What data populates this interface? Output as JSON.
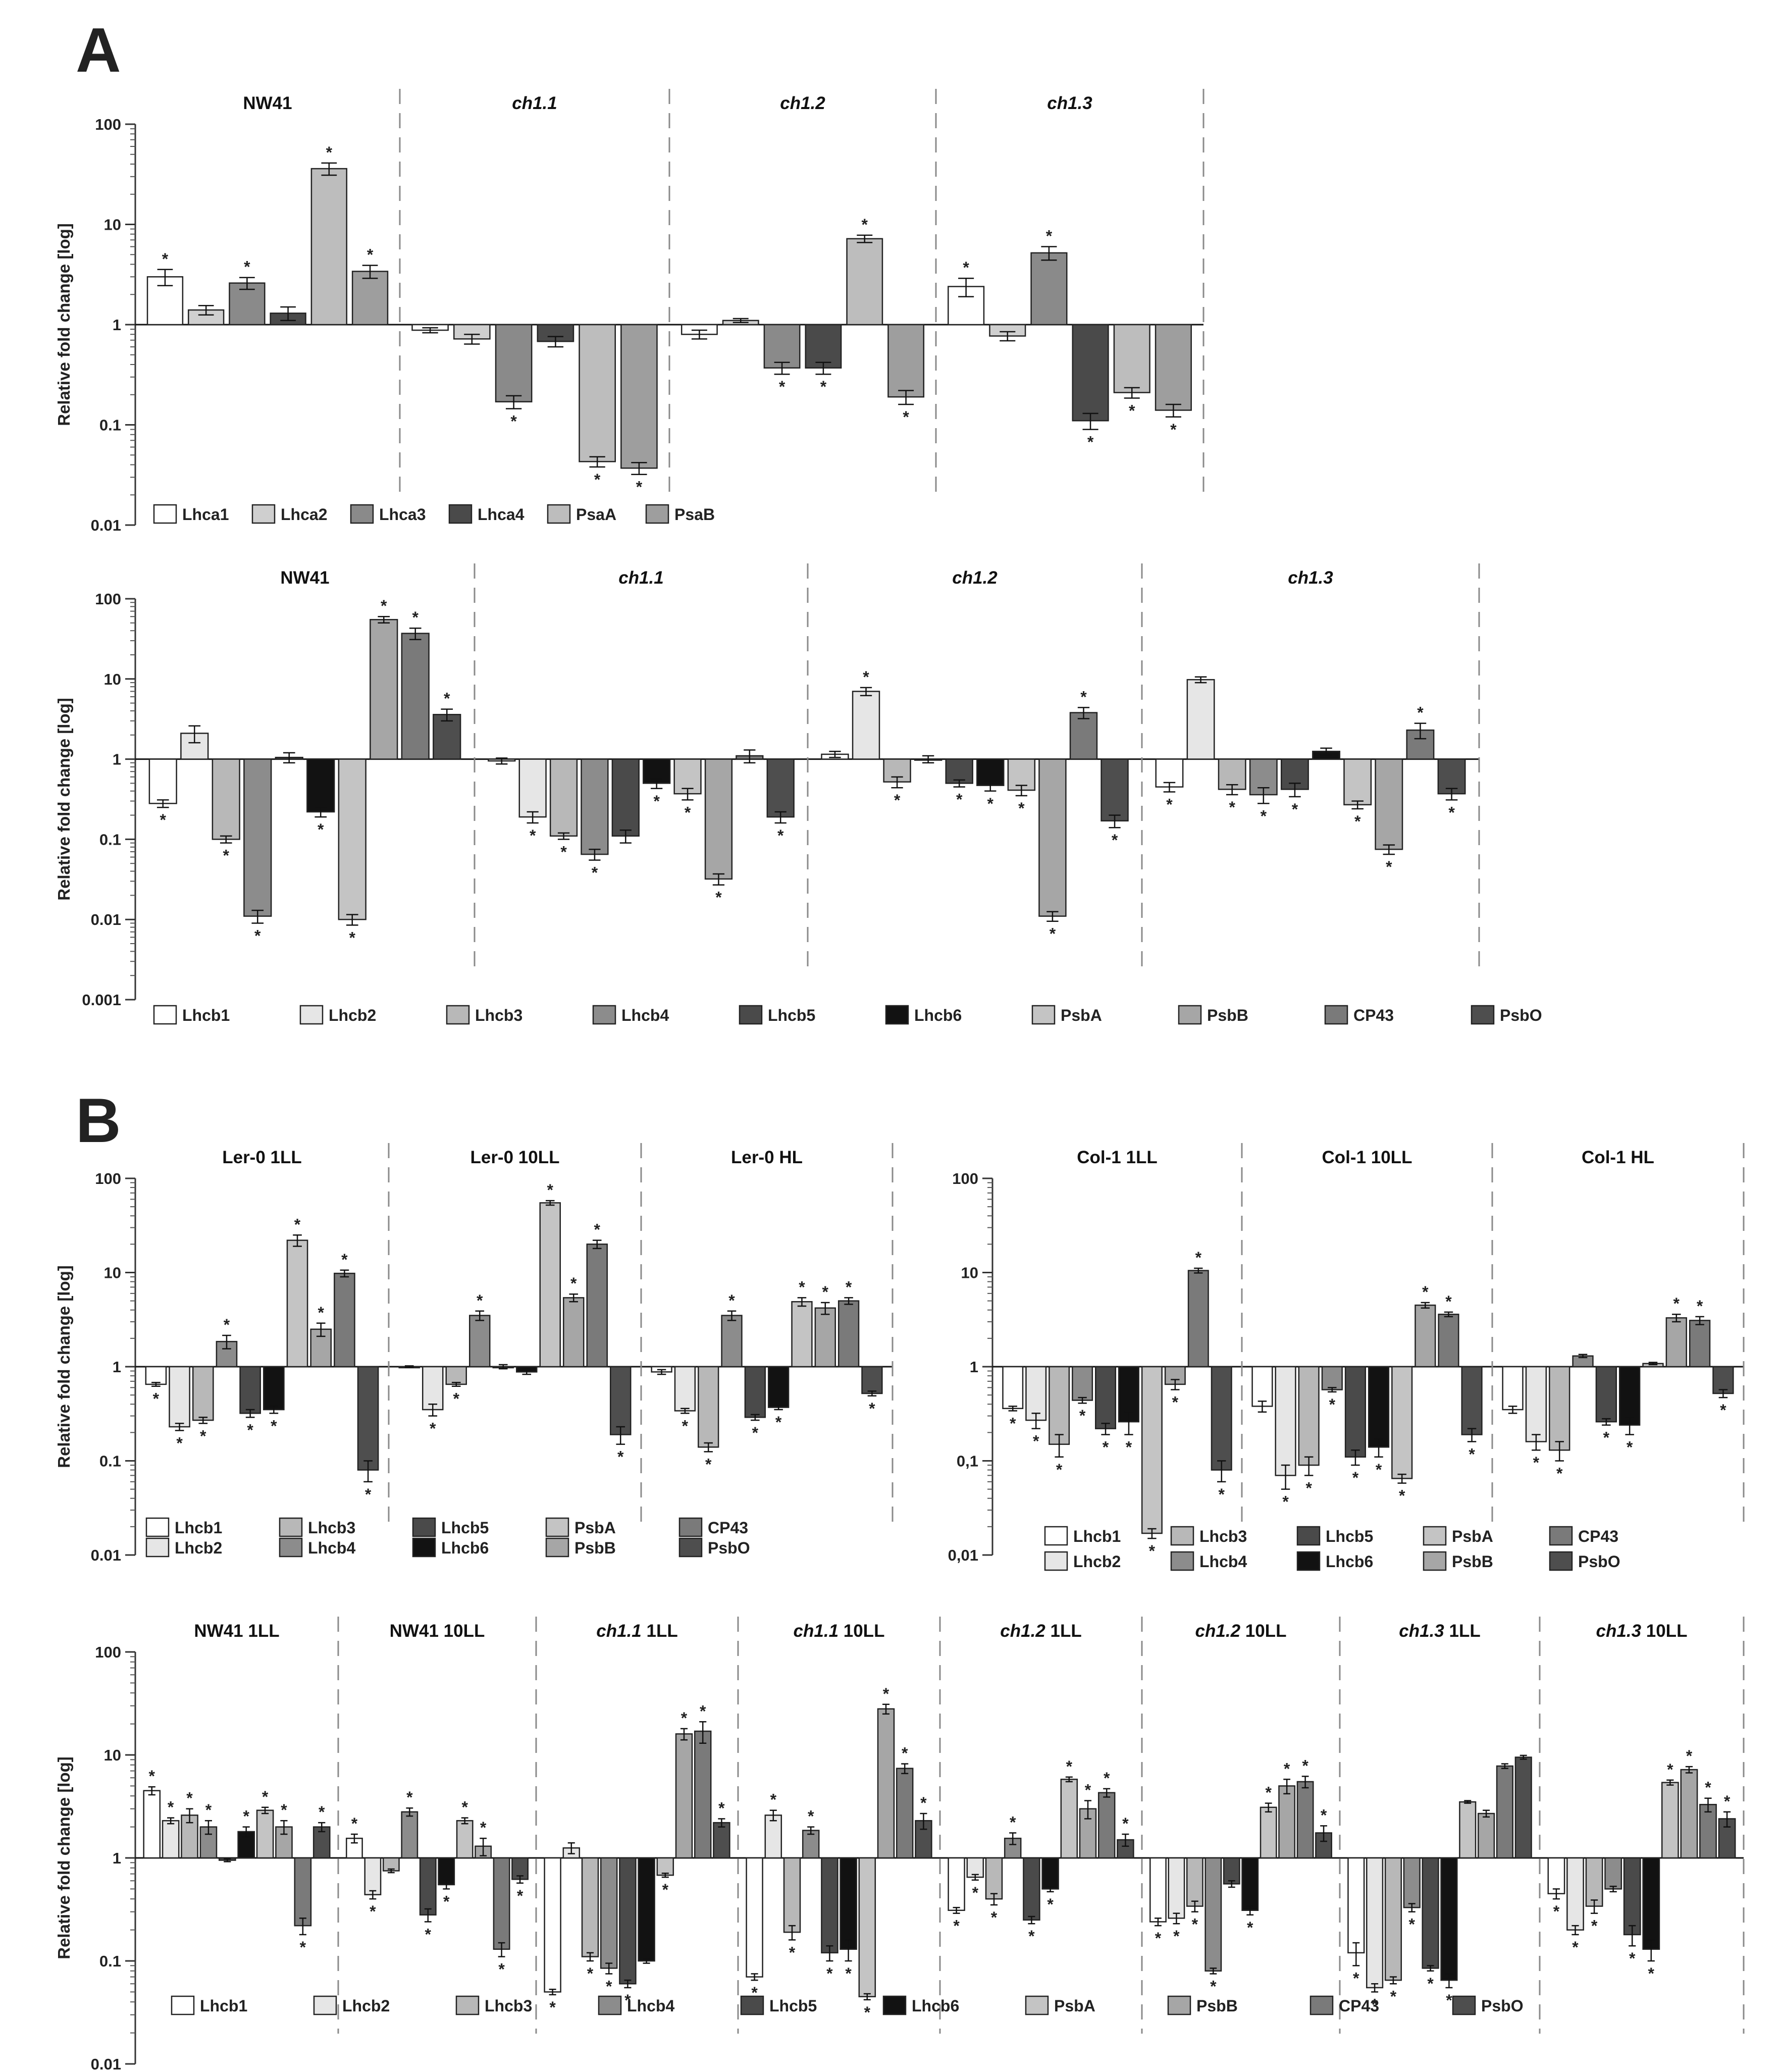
{
  "figure": {
    "panel_letters": [
      "A",
      "B"
    ],
    "colors": {
      "Lhca1": "#ffffff",
      "Lhca2": "#cfcfcf",
      "Lhca3": "#8a8a8a",
      "Lhca4": "#4a4a4a",
      "PsaA": "#bdbdbd",
      "PsaB": "#9e9e9e",
      "Lhcb1": "#ffffff",
      "Lhcb2": "#e6e6e6",
      "Lhcb3": "#b8b8b8",
      "Lhcb4": "#8c8c8c",
      "Lhcb5": "#4a4a4a",
      "Lhcb6": "#121212",
      "PsbA": "#c4c4c4",
      "PsbB": "#a6a6a6",
      "CP43": "#7a7a7a",
      "PsbO": "#4e4e4e"
    }
  },
  "chart_data": [
    {
      "id": "A1",
      "type": "bar",
      "ylabel": "Relative fold change [log]",
      "scale": "log",
      "ylim": [
        0.01,
        100
      ],
      "ytick_labels": [
        "100",
        "10",
        "1",
        "0.1",
        "0.01"
      ],
      "series_names": [
        "Lhca1",
        "Lhca2",
        "Lhca3",
        "Lhca4",
        "PsaA",
        "PsaB"
      ],
      "groups": [
        {
          "label": "NW41",
          "italic": false,
          "values": [
            3.0,
            1.4,
            2.6,
            1.3,
            36,
            3.4
          ],
          "errors": [
            0.55,
            0.15,
            0.35,
            0.2,
            5,
            0.5
          ],
          "sig": [
            1,
            0,
            1,
            0,
            1,
            1
          ]
        },
        {
          "label": "ch1.1",
          "italic": true,
          "values": [
            0.88,
            0.72,
            0.17,
            0.68,
            0.043,
            0.037
          ],
          "errors": [
            0.05,
            0.08,
            0.025,
            0.08,
            0.005,
            0.005
          ],
          "sig": [
            0,
            0,
            1,
            0,
            1,
            1
          ]
        },
        {
          "label": "ch1.2",
          "italic": true,
          "values": [
            0.8,
            1.1,
            0.37,
            0.37,
            7.2,
            0.19
          ],
          "errors": [
            0.08,
            0.05,
            0.05,
            0.05,
            0.6,
            0.03
          ],
          "sig": [
            0,
            0,
            1,
            1,
            1,
            1
          ]
        },
        {
          "label": "ch1.3",
          "italic": true,
          "values": [
            2.4,
            0.77,
            5.2,
            0.11,
            0.21,
            0.14
          ],
          "errors": [
            0.5,
            0.08,
            0.8,
            0.02,
            0.025,
            0.02
          ],
          "sig": [
            1,
            0,
            1,
            1,
            1,
            1
          ]
        }
      ]
    },
    {
      "id": "A2",
      "type": "bar",
      "ylabel": "Relative fold change [log]",
      "scale": "log",
      "ylim": [
        0.001,
        100
      ],
      "ytick_labels": [
        "100",
        "10",
        "1",
        "0.1",
        "0.01",
        "0.001"
      ],
      "series_names": [
        "Lhcb1",
        "Lhcb2",
        "Lhcb3",
        "Lhcb4",
        "Lhcb5",
        "Lhcb6",
        "PsbA",
        "PsbB",
        "CP43",
        "PsbO"
      ],
      "groups": [
        {
          "label": "NW41",
          "italic": false,
          "values": [
            0.28,
            2.1,
            0.1,
            0.011,
            1.05,
            0.22,
            0.01,
            55,
            37,
            3.6
          ],
          "errors": [
            0.03,
            0.5,
            0.01,
            0.002,
            0.15,
            0.03,
            0.0015,
            5,
            6,
            0.6
          ],
          "sig": [
            1,
            0,
            1,
            1,
            0,
            1,
            1,
            1,
            1,
            1
          ]
        },
        {
          "label": "ch1.1",
          "italic": true,
          "values": [
            0.95,
            0.19,
            0.11,
            0.065,
            0.11,
            0.5,
            0.37,
            0.032,
            1.1,
            0.19
          ],
          "errors": [
            0.08,
            0.03,
            0.01,
            0.01,
            0.02,
            0.07,
            0.06,
            0.005,
            0.2,
            0.03
          ],
          "sig": [
            0,
            1,
            1,
            1,
            0,
            1,
            1,
            1,
            0,
            1
          ]
        },
        {
          "label": "ch1.2",
          "italic": true,
          "values": [
            1.15,
            7.0,
            0.52,
            1.0,
            0.5,
            0.47,
            0.41,
            0.011,
            3.8,
            0.17
          ],
          "errors": [
            0.1,
            0.8,
            0.08,
            0.1,
            0.05,
            0.07,
            0.06,
            0.0015,
            0.6,
            0.03
          ],
          "sig": [
            0,
            1,
            1,
            0,
            1,
            1,
            1,
            1,
            1,
            1
          ]
        },
        {
          "label": "ch1.3",
          "italic": true,
          "values": [
            0.45,
            9.8,
            0.42,
            0.36,
            0.42,
            1.25,
            0.27,
            0.075,
            2.3,
            0.37
          ],
          "errors": [
            0.06,
            0.8,
            0.06,
            0.08,
            0.08,
            0.12,
            0.03,
            0.01,
            0.5,
            0.06
          ],
          "sig": [
            1,
            0,
            1,
            1,
            1,
            0,
            1,
            1,
            1,
            1
          ]
        }
      ]
    },
    {
      "id": "B1",
      "type": "bar",
      "ylabel": "Relative fold change [log]",
      "scale": "log",
      "ylim": [
        0.01,
        100
      ],
      "ytick_labels": [
        "100",
        "10",
        "1",
        "0.1",
        "0.01"
      ],
      "series_names": [
        "Lhcb1",
        "Lhcb2",
        "Lhcb3",
        "Lhcb4",
        "Lhcb5",
        "Lhcb6",
        "PsbA",
        "PsbB",
        "CP43",
        "PsbO"
      ],
      "groups": [
        {
          "label": "Ler-0 1LL",
          "italic": false,
          "values": [
            0.65,
            0.23,
            0.27,
            1.85,
            0.32,
            0.35,
            22,
            2.5,
            9.8,
            0.08
          ],
          "errors": [
            0.03,
            0.02,
            0.02,
            0.3,
            0.03,
            0.03,
            3,
            0.4,
            0.8,
            0.02
          ],
          "sig": [
            1,
            1,
            1,
            1,
            1,
            1,
            1,
            1,
            1,
            1
          ]
        },
        {
          "label": "Ler-0 10LL",
          "italic": false,
          "values": [
            1.0,
            0.35,
            0.65,
            3.5,
            1.0,
            0.88,
            55,
            5.4,
            20,
            0.19
          ],
          "errors": [
            0.02,
            0.05,
            0.03,
            0.4,
            0.05,
            0.05,
            3,
            0.5,
            2,
            0.04
          ],
          "sig": [
            0,
            1,
            1,
            1,
            0,
            0,
            1,
            1,
            1,
            1
          ]
        },
        {
          "label": "Ler-0 HL",
          "italic": false,
          "values": [
            0.88,
            0.34,
            0.14,
            3.5,
            0.29,
            0.37,
            4.9,
            4.2,
            5.0,
            0.52
          ],
          "errors": [
            0.05,
            0.02,
            0.015,
            0.4,
            0.02,
            0.02,
            0.5,
            0.6,
            0.4,
            0.03
          ],
          "sig": [
            0,
            1,
            1,
            1,
            1,
            1,
            1,
            1,
            1,
            1
          ]
        }
      ]
    },
    {
      "id": "B2",
      "type": "bar",
      "ylabel": "",
      "scale": "log",
      "ylim": [
        0.01,
        100
      ],
      "ytick_labels": [
        "100",
        "10",
        "1",
        "0,1",
        "0,01"
      ],
      "series_names": [
        "Lhcb1",
        "Lhcb2",
        "Lhcb3",
        "Lhcb4",
        "Lhcb5",
        "Lhcb6",
        "PsbA",
        "PsbB",
        "CP43",
        "PsbO"
      ],
      "groups": [
        {
          "label": "Col-1 1LL",
          "italic": false,
          "values": [
            0.36,
            0.27,
            0.15,
            0.44,
            0.22,
            0.26,
            0.017,
            0.65,
            10.5,
            0.08
          ],
          "errors": [
            0.02,
            0.05,
            0.04,
            0.03,
            0.03,
            0.07,
            0.002,
            0.08,
            0.6,
            0.02
          ],
          "sig": [
            1,
            1,
            1,
            1,
            1,
            1,
            1,
            1,
            1,
            1
          ]
        },
        {
          "label": "Col-1 10LL",
          "italic": false,
          "values": [
            0.38,
            0.07,
            0.09,
            0.57,
            0.11,
            0.14,
            0.065,
            4.5,
            3.6,
            0.19
          ],
          "errors": [
            0.05,
            0.02,
            0.02,
            0.03,
            0.02,
            0.03,
            0.007,
            0.3,
            0.2,
            0.03
          ],
          "sig": [
            0,
            1,
            1,
            1,
            1,
            1,
            1,
            1,
            1,
            1
          ]
        },
        {
          "label": "Col-1 HL",
          "italic": false,
          "values": [
            0.35,
            0.16,
            0.13,
            1.3,
            0.26,
            0.24,
            1.08,
            3.3,
            3.1,
            0.52
          ],
          "errors": [
            0.03,
            0.03,
            0.03,
            0.05,
            0.02,
            0.05,
            0.03,
            0.3,
            0.3,
            0.05
          ],
          "sig": [
            0,
            1,
            1,
            0,
            1,
            1,
            0,
            1,
            1,
            1
          ]
        }
      ]
    },
    {
      "id": "B3",
      "type": "bar",
      "ylabel": "Relative fold change [log]",
      "scale": "log",
      "ylim": [
        0.01,
        100
      ],
      "ytick_labels": [
        "100",
        "10",
        "1",
        "0.1",
        "0.01"
      ],
      "series_names": [
        "Lhcb1",
        "Lhcb2",
        "Lhcb3",
        "Lhcb4",
        "Lhcb5",
        "Lhcb6",
        "PsbA",
        "PsbB",
        "CP43",
        "PsbO"
      ],
      "groups": [
        {
          "label": "NW41 1LL",
          "italic": false,
          "values": [
            4.5,
            2.3,
            2.6,
            2.0,
            0.95,
            1.8,
            2.9,
            2.0,
            0.22,
            2.0
          ],
          "errors": [
            0.4,
            0.15,
            0.4,
            0.3,
            0.03,
            0.2,
            0.2,
            0.3,
            0.04,
            0.2
          ],
          "sig": [
            1,
            1,
            1,
            1,
            0,
            1,
            1,
            1,
            1,
            1
          ]
        },
        {
          "label": "NW41 10LL",
          "italic": false,
          "values": [
            1.55,
            0.44,
            0.75,
            2.8,
            0.28,
            0.55,
            2.3,
            1.3,
            0.13,
            0.62
          ],
          "errors": [
            0.15,
            0.04,
            0.03,
            0.25,
            0.04,
            0.05,
            0.15,
            0.25,
            0.02,
            0.05
          ],
          "sig": [
            1,
            1,
            0,
            1,
            1,
            1,
            1,
            1,
            1,
            1
          ]
        },
        {
          "label": "ch1.1 1LL",
          "italic": true,
          "values": [
            0.05,
            1.25,
            0.11,
            0.085,
            0.06,
            0.1,
            0.68,
            16,
            17,
            2.2
          ],
          "errors": [
            0.003,
            0.15,
            0.01,
            0.01,
            0.005,
            0.005,
            0.03,
            2,
            4,
            0.2
          ],
          "sig": [
            1,
            0,
            1,
            1,
            1,
            0,
            1,
            1,
            1,
            1
          ]
        },
        {
          "label": "ch1.1 10LL",
          "italic": true,
          "values": [
            0.07,
            2.6,
            0.19,
            1.85,
            0.12,
            0.13,
            0.045,
            28,
            7.4,
            2.3
          ],
          "errors": [
            0.005,
            0.3,
            0.03,
            0.15,
            0.02,
            0.03,
            0.003,
            3,
            0.8,
            0.4
          ],
          "sig": [
            1,
            1,
            1,
            1,
            1,
            1,
            1,
            1,
            1,
            1
          ]
        },
        {
          "label": "ch1.2 1LL",
          "italic": true,
          "values": [
            0.31,
            0.65,
            0.4,
            1.55,
            0.25,
            0.5,
            5.8,
            3.0,
            4.3,
            1.5
          ],
          "errors": [
            0.02,
            0.04,
            0.05,
            0.2,
            0.02,
            0.03,
            0.3,
            0.6,
            0.4,
            0.2
          ],
          "sig": [
            1,
            1,
            1,
            1,
            1,
            1,
            1,
            1,
            1,
            1
          ]
        },
        {
          "label": "ch1.2 10LL",
          "italic": true,
          "values": [
            0.24,
            0.26,
            0.34,
            0.08,
            0.56,
            0.31,
            3.1,
            5.0,
            5.5,
            1.75
          ],
          "errors": [
            0.02,
            0.03,
            0.04,
            0.005,
            0.04,
            0.03,
            0.3,
            0.8,
            0.7,
            0.3
          ],
          "sig": [
            1,
            1,
            1,
            1,
            0,
            1,
            1,
            1,
            1,
            1
          ]
        },
        {
          "label": "ch1.3 1LL",
          "italic": true,
          "values": [
            0.12,
            0.055,
            0.065,
            0.33,
            0.085,
            0.065,
            3.5,
            2.7,
            7.8,
            9.5
          ],
          "errors": [
            0.03,
            0.005,
            0.005,
            0.03,
            0.005,
            0.01,
            0.1,
            0.2,
            0.4,
            0.4
          ],
          "sig": [
            1,
            1,
            1,
            1,
            1,
            1,
            0,
            0,
            0,
            0
          ]
        },
        {
          "label": "ch1.3 10LL",
          "italic": true,
          "values": [
            0.45,
            0.2,
            0.34,
            0.5,
            0.18,
            0.13,
            5.4,
            7.2,
            3.3,
            2.4
          ],
          "errors": [
            0.05,
            0.02,
            0.05,
            0.03,
            0.04,
            0.03,
            0.3,
            0.5,
            0.5,
            0.4
          ],
          "sig": [
            1,
            1,
            1,
            0,
            1,
            1,
            1,
            1,
            1,
            1
          ]
        }
      ]
    }
  ]
}
